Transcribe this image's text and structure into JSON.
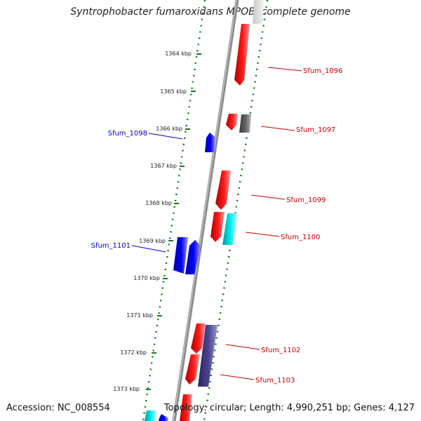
{
  "title": "Syntrophobacter fumaroxidans MPOB, complete genome",
  "footer": {
    "accession": "Accession: NC_008554",
    "summary": "Topology: circular; Length: 4,990,251 bp; Genes: 4,127"
  },
  "colors": {
    "forward_strand": "#ff0000",
    "reverse_strand": "#0000ff",
    "cyan_gene": "#00e5ee",
    "purple_gene": "#4a4490",
    "gray_gene": "#5a5a5a",
    "backbone": "#8c8c8c",
    "tick_marks": "#1a7a1a"
  },
  "ticks": [
    {
      "label": "1364 kbp",
      "kbp": 1364
    },
    {
      "label": "1365 kbp",
      "kbp": 1365
    },
    {
      "label": "1366 kbp",
      "kbp": 1366
    },
    {
      "label": "1367 kbp",
      "kbp": 1367
    },
    {
      "label": "1368 kbp",
      "kbp": 1368
    },
    {
      "label": "1369 kbp",
      "kbp": 1369
    },
    {
      "label": "1370 kbp",
      "kbp": 1370
    },
    {
      "label": "1371 kbp",
      "kbp": 1371
    },
    {
      "label": "1372 kbp",
      "kbp": 1372
    },
    {
      "label": "1373 kbp",
      "kbp": 1373
    }
  ],
  "labeled_genes": [
    {
      "name": "Sfum_1096",
      "strand": "forward"
    },
    {
      "name": "Sfum_1097",
      "strand": "forward"
    },
    {
      "name": "Sfum_1098",
      "strand": "reverse"
    },
    {
      "name": "Sfum_1099",
      "strand": "forward"
    },
    {
      "name": "Sfum_1100",
      "strand": "forward"
    },
    {
      "name": "Sfum_1101",
      "strand": "reverse"
    },
    {
      "name": "Sfum_1102",
      "strand": "forward"
    },
    {
      "name": "Sfum_1103",
      "strand": "forward"
    }
  ]
}
